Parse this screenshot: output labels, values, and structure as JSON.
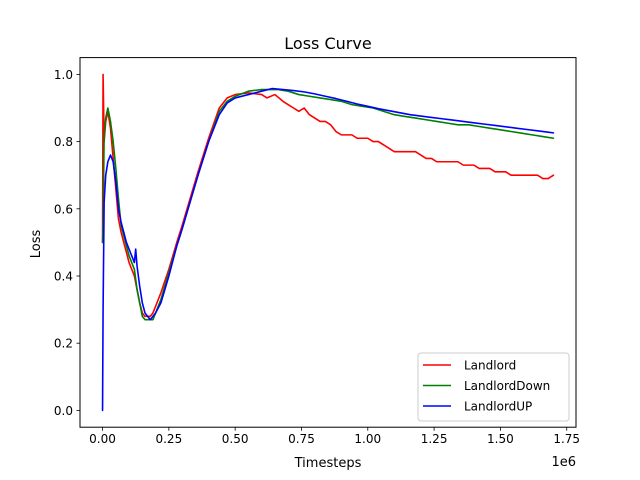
{
  "chart_data": {
    "type": "line",
    "title": "Loss Curve",
    "xlabel": "Timesteps",
    "ylabel": "Loss",
    "x_offset_label": "1e6",
    "xlim": [
      -0.085,
      1.785
    ],
    "ylim": [
      -0.05,
      1.05
    ],
    "xticks": [
      0.0,
      0.25,
      0.5,
      0.75,
      1.0,
      1.25,
      1.5,
      1.75
    ],
    "xtick_labels": [
      "0.00",
      "0.25",
      "0.50",
      "0.75",
      "1.00",
      "1.25",
      "1.50",
      "1.75"
    ],
    "yticks": [
      0.0,
      0.2,
      0.4,
      0.6,
      0.8,
      1.0
    ],
    "ytick_labels": [
      "0.0",
      "0.2",
      "0.4",
      "0.6",
      "0.8",
      "1.0"
    ],
    "grid": false,
    "legend_position": "lower-right",
    "series": [
      {
        "name": "Landlord",
        "color": "#ff0000",
        "x": [
          0.0,
          0.002,
          0.006,
          0.012,
          0.02,
          0.03,
          0.04,
          0.05,
          0.06,
          0.07,
          0.08,
          0.09,
          0.1,
          0.11,
          0.12,
          0.13,
          0.14,
          0.15,
          0.16,
          0.17,
          0.18,
          0.19,
          0.2,
          0.22,
          0.25,
          0.28,
          0.3,
          0.33,
          0.36,
          0.4,
          0.44,
          0.47,
          0.5,
          0.55,
          0.6,
          0.62,
          0.65,
          0.68,
          0.7,
          0.72,
          0.74,
          0.76,
          0.78,
          0.8,
          0.82,
          0.84,
          0.86,
          0.88,
          0.9,
          0.92,
          0.94,
          0.96,
          0.98,
          1.0,
          1.02,
          1.04,
          1.06,
          1.08,
          1.1,
          1.12,
          1.14,
          1.16,
          1.18,
          1.2,
          1.22,
          1.24,
          1.26,
          1.28,
          1.3,
          1.32,
          1.34,
          1.36,
          1.38,
          1.4,
          1.42,
          1.44,
          1.46,
          1.48,
          1.5,
          1.52,
          1.54,
          1.56,
          1.58,
          1.6,
          1.62,
          1.64,
          1.66,
          1.68,
          1.7
        ],
        "values": [
          0.5,
          1.0,
          0.8,
          0.86,
          0.89,
          0.84,
          0.75,
          0.66,
          0.57,
          0.53,
          0.5,
          0.47,
          0.44,
          0.42,
          0.4,
          0.36,
          0.32,
          0.29,
          0.28,
          0.28,
          0.28,
          0.29,
          0.31,
          0.35,
          0.42,
          0.5,
          0.55,
          0.63,
          0.71,
          0.81,
          0.9,
          0.93,
          0.94,
          0.945,
          0.94,
          0.93,
          0.94,
          0.92,
          0.91,
          0.9,
          0.89,
          0.9,
          0.88,
          0.87,
          0.86,
          0.86,
          0.85,
          0.83,
          0.82,
          0.82,
          0.82,
          0.81,
          0.81,
          0.81,
          0.8,
          0.8,
          0.79,
          0.78,
          0.77,
          0.77,
          0.77,
          0.77,
          0.77,
          0.76,
          0.75,
          0.75,
          0.74,
          0.74,
          0.74,
          0.74,
          0.74,
          0.73,
          0.73,
          0.73,
          0.72,
          0.72,
          0.72,
          0.71,
          0.71,
          0.71,
          0.7,
          0.7,
          0.7,
          0.7,
          0.7,
          0.7,
          0.69,
          0.69,
          0.7
        ]
      },
      {
        "name": "LandlordDown",
        "color": "#008000",
        "x": [
          0.0,
          0.002,
          0.006,
          0.012,
          0.02,
          0.03,
          0.04,
          0.05,
          0.06,
          0.07,
          0.08,
          0.09,
          0.1,
          0.11,
          0.12,
          0.13,
          0.14,
          0.15,
          0.16,
          0.17,
          0.18,
          0.19,
          0.2,
          0.22,
          0.25,
          0.28,
          0.3,
          0.33,
          0.36,
          0.4,
          0.44,
          0.47,
          0.5,
          0.55,
          0.6,
          0.63,
          0.66,
          0.7,
          0.74,
          0.78,
          0.82,
          0.86,
          0.9,
          0.94,
          0.98,
          1.02,
          1.06,
          1.1,
          1.14,
          1.18,
          1.22,
          1.26,
          1.3,
          1.34,
          1.38,
          1.42,
          1.46,
          1.5,
          1.54,
          1.58,
          1.62,
          1.66,
          1.7
        ],
        "values": [
          0.5,
          0.55,
          0.82,
          0.87,
          0.9,
          0.86,
          0.8,
          0.72,
          0.63,
          0.55,
          0.52,
          0.49,
          0.46,
          0.44,
          0.42,
          0.36,
          0.32,
          0.28,
          0.27,
          0.27,
          0.27,
          0.27,
          0.29,
          0.33,
          0.41,
          0.49,
          0.54,
          0.62,
          0.7,
          0.8,
          0.89,
          0.92,
          0.935,
          0.95,
          0.955,
          0.955,
          0.955,
          0.95,
          0.94,
          0.935,
          0.93,
          0.925,
          0.92,
          0.91,
          0.905,
          0.9,
          0.89,
          0.88,
          0.875,
          0.87,
          0.865,
          0.86,
          0.855,
          0.85,
          0.85,
          0.845,
          0.84,
          0.835,
          0.83,
          0.825,
          0.82,
          0.815,
          0.81
        ]
      },
      {
        "name": "LandlordUP",
        "color": "#0000ff",
        "x": [
          0.0,
          0.002,
          0.006,
          0.012,
          0.02,
          0.03,
          0.04,
          0.05,
          0.06,
          0.07,
          0.08,
          0.09,
          0.1,
          0.11,
          0.12,
          0.125,
          0.13,
          0.14,
          0.15,
          0.16,
          0.17,
          0.18,
          0.19,
          0.2,
          0.22,
          0.25,
          0.28,
          0.3,
          0.33,
          0.36,
          0.4,
          0.44,
          0.47,
          0.5,
          0.55,
          0.6,
          0.64,
          0.68,
          0.72,
          0.76,
          0.8,
          0.84,
          0.88,
          0.92,
          0.96,
          1.0,
          1.04,
          1.08,
          1.12,
          1.16,
          1.2,
          1.24,
          1.28,
          1.32,
          1.36,
          1.4,
          1.44,
          1.48,
          1.52,
          1.56,
          1.6,
          1.64,
          1.68,
          1.7
        ],
        "values": [
          0.0,
          0.3,
          0.62,
          0.7,
          0.74,
          0.76,
          0.74,
          0.68,
          0.6,
          0.56,
          0.53,
          0.5,
          0.48,
          0.46,
          0.44,
          0.48,
          0.43,
          0.37,
          0.32,
          0.29,
          0.28,
          0.27,
          0.28,
          0.29,
          0.32,
          0.4,
          0.49,
          0.54,
          0.62,
          0.7,
          0.8,
          0.88,
          0.915,
          0.93,
          0.94,
          0.95,
          0.958,
          0.955,
          0.952,
          0.948,
          0.942,
          0.935,
          0.928,
          0.92,
          0.912,
          0.905,
          0.898,
          0.892,
          0.886,
          0.88,
          0.876,
          0.872,
          0.868,
          0.864,
          0.86,
          0.856,
          0.852,
          0.848,
          0.844,
          0.84,
          0.836,
          0.832,
          0.828,
          0.826
        ]
      }
    ]
  }
}
